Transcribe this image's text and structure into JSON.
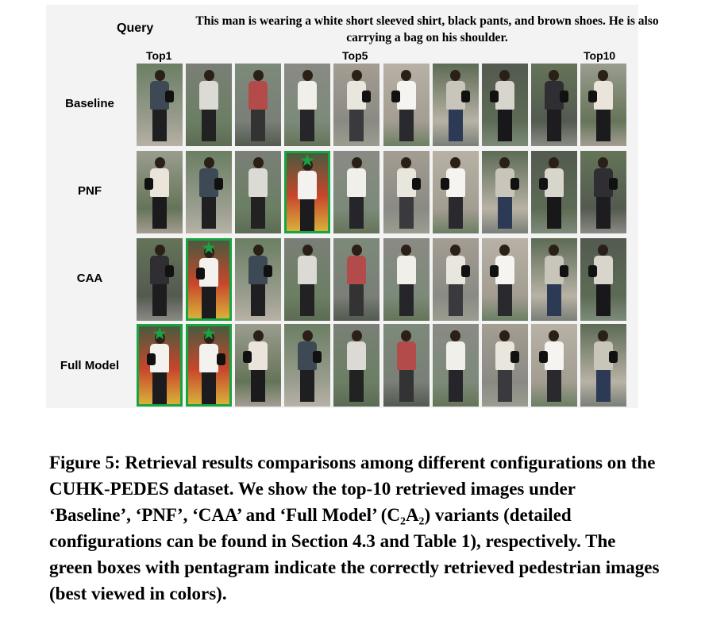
{
  "figure": {
    "query_label": "Query",
    "query_text": "This man is wearing a white short sleeved shirt, black pants, and brown shoes. He is also carrying a bag on his shoulder.",
    "rank_labels": [
      "Top1",
      "Top5",
      "Top10"
    ],
    "rows": [
      {
        "label": "Baseline",
        "correct": [
          false,
          false,
          false,
          false,
          false,
          false,
          false,
          false,
          false,
          false
        ]
      },
      {
        "label": "PNF",
        "correct": [
          false,
          false,
          false,
          true,
          false,
          false,
          false,
          false,
          false,
          false
        ]
      },
      {
        "label": "CAA",
        "correct": [
          false,
          true,
          false,
          false,
          false,
          false,
          false,
          false,
          false,
          false
        ]
      },
      {
        "label": "Full Model",
        "correct": [
          true,
          true,
          false,
          false,
          false,
          false,
          false,
          false,
          false,
          false
        ]
      }
    ],
    "correct_marker_color": "#1aa341"
  },
  "caption": {
    "text": "Figure 5: Retrieval results comparisons among different configurations on the CUHK-PEDES dataset. We show the top-10 retrieved images under ‘Baseline’, ‘PNF’, ‘CAA’ and ‘Full Model’ (C₂A₂) variants (detailed configurations can be found in Section 4.3 and Table 1), respectively. The green boxes with pentagram indicate the correctly retrieved pedestrian images (best viewed in colors)."
  }
}
